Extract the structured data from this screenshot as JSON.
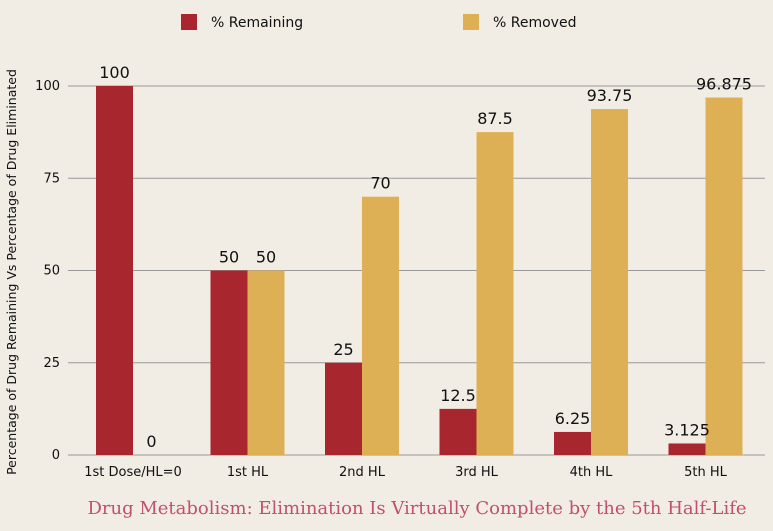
{
  "chart_data": {
    "type": "bar",
    "title": "",
    "ylabel": "Percentage of Drug Remaining Vs Percentage of Drug Eliminated",
    "xlabel": "",
    "categories": [
      "1st Dose/HL=0",
      "1st HL",
      "2nd HL",
      "3rd HL",
      "4th HL",
      "5th HL"
    ],
    "series": [
      {
        "name": "% Remaining",
        "values": [
          100,
          50,
          25,
          12.5,
          6.25,
          3.125
        ],
        "labels": [
          "100",
          "50",
          "25",
          "12.5",
          "6.25",
          "3.125"
        ]
      },
      {
        "name": "% Removed",
        "values": [
          0,
          50,
          70,
          87.5,
          93.75,
          96.875
        ],
        "labels": [
          "0",
          "50",
          "70",
          "87.5",
          "93.75",
          "96.875"
        ]
      }
    ],
    "ylim": [
      0,
      100
    ],
    "yticks": [
      0,
      25,
      50,
      75,
      100
    ],
    "grid": true,
    "legend": "top",
    "colors": {
      "remaining": "#a8262e",
      "removed": "#deb055",
      "grid": "#9a9a9a",
      "background": "#f1ece4"
    }
  },
  "caption": "Drug Metabolism:  Elimination Is Virtually Complete by the 5th Half-Life",
  "caption_color": "#c0506e"
}
